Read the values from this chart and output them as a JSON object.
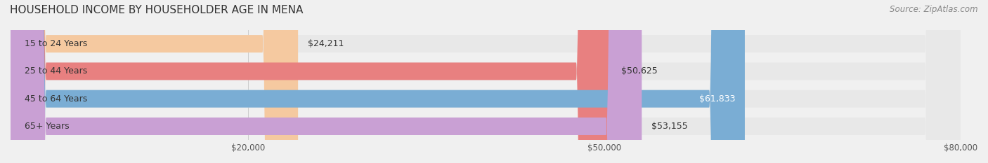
{
  "title": "HOUSEHOLD INCOME BY HOUSEHOLDER AGE IN MENA",
  "source": "Source: ZipAtlas.com",
  "categories": [
    "15 to 24 Years",
    "25 to 44 Years",
    "45 to 64 Years",
    "65+ Years"
  ],
  "values": [
    24211,
    50625,
    61833,
    53155
  ],
  "bar_colors": [
    "#f5c9a0",
    "#e88080",
    "#7aadd4",
    "#c9a0d4"
  ],
  "bar_edge_colors": [
    "#e8a870",
    "#d06060",
    "#5a8db4",
    "#a980b4"
  ],
  "label_colors": [
    "#555555",
    "#555555",
    "#ffffff",
    "#555555"
  ],
  "value_labels": [
    "$24,211",
    "$50,625",
    "$61,833",
    "$53,155"
  ],
  "xlim": [
    0,
    80000
  ],
  "xticks": [
    20000,
    50000,
    80000
  ],
  "xtick_labels": [
    "$20,000",
    "$50,000",
    "$80,000"
  ],
  "background_color": "#f0f0f0",
  "bar_background_color": "#e8e8e8",
  "title_fontsize": 11,
  "source_fontsize": 8.5,
  "label_fontsize": 9,
  "value_fontsize": 9,
  "tick_fontsize": 8.5
}
